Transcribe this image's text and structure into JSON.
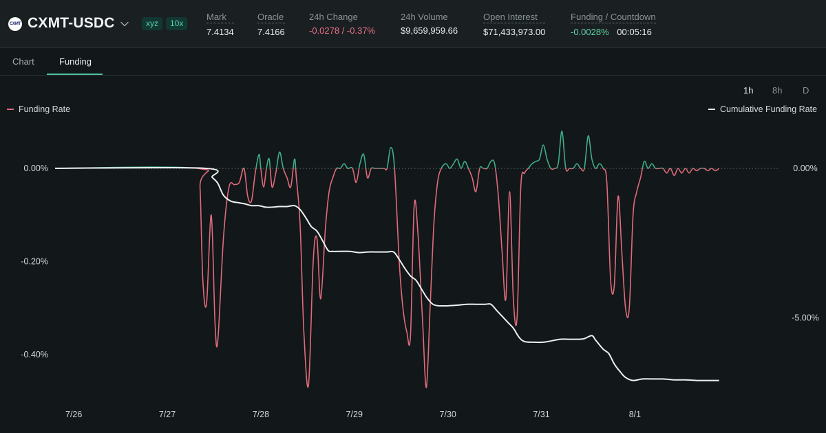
{
  "header": {
    "logo_text": "CXMT",
    "symbol": "CXMT-USDC",
    "badges": [
      "xyz",
      "10x"
    ],
    "stats": {
      "mark": {
        "label": "Mark",
        "value": "7.4134"
      },
      "oracle": {
        "label": "Oracle",
        "value": "7.4166"
      },
      "change": {
        "label": "24h Change",
        "value": "-0.0278 / -0.37%"
      },
      "volume": {
        "label": "24h Volume",
        "value": "$9,659,959.66"
      },
      "open_interest": {
        "label": "Open Interest",
        "value": "$71,433,973.00"
      },
      "funding": {
        "label": "Funding / Countdown",
        "rate": "-0.0028%",
        "countdown": "00:05:16"
      }
    }
  },
  "tabs": [
    {
      "label": "Chart"
    },
    {
      "label": "Funding"
    }
  ],
  "active_tab": "Funding",
  "intervals": [
    {
      "label": "1h"
    },
    {
      "label": "8h"
    },
    {
      "label": "D"
    }
  ],
  "active_interval": "1h",
  "colors": {
    "positive": "#3fae86",
    "negative": "#e06b7c",
    "cumulative": "#eef0f0",
    "accent": "#4fc3a4"
  },
  "chart_data": {
    "type": "line",
    "legend": {
      "left": "Funding Rate",
      "right": "Cumulative Funding Rate"
    },
    "x_ticks": [
      "7/26",
      "7/27",
      "7/28",
      "7/29",
      "7/30",
      "7/31",
      "8/1"
    ],
    "x_range": [
      0,
      7.75
    ],
    "left_axis": {
      "ticks": [
        "0.00%",
        "-0.20%",
        "-0.40%"
      ],
      "tick_values": [
        0,
        -0.2,
        -0.4
      ],
      "range": [
        -0.5,
        0.09
      ]
    },
    "right_axis": {
      "ticks": [
        "0.00%",
        "-5.00%"
      ],
      "tick_values": [
        0,
        -5
      ],
      "range": [
        -7.8,
        1.4
      ]
    },
    "zero_line": "dotted",
    "series": [
      {
        "name": "Funding Rate",
        "axis": "left",
        "colors": {
          "above_zero": "#3fae86",
          "below_zero": "#e06b7c"
        },
        "points": [
          [
            0,
            0
          ],
          [
            1.52,
            0
          ],
          [
            1.55,
            -0.04
          ],
          [
            1.58,
            -0.24
          ],
          [
            1.62,
            -0.29
          ],
          [
            1.67,
            -0.1
          ],
          [
            1.71,
            -0.33
          ],
          [
            1.74,
            -0.37
          ],
          [
            1.8,
            -0.15
          ],
          [
            1.86,
            -0.04
          ],
          [
            1.92,
            -0.035
          ],
          [
            1.97,
            -0.03
          ],
          [
            2.02,
            0.0
          ],
          [
            2.06,
            -0.06
          ],
          [
            2.1,
            -0.07
          ],
          [
            2.14,
            -0.01
          ],
          [
            2.18,
            0.03
          ],
          [
            2.2,
            0.0
          ],
          [
            2.23,
            -0.04
          ],
          [
            2.26,
            0.0
          ],
          [
            2.29,
            0.02
          ],
          [
            2.32,
            -0.04
          ],
          [
            2.36,
            -0.01
          ],
          [
            2.4,
            0.035
          ],
          [
            2.44,
            0.0
          ],
          [
            2.48,
            -0.02
          ],
          [
            2.52,
            -0.04
          ],
          [
            2.56,
            0.02
          ],
          [
            2.58,
            -0.02
          ],
          [
            2.62,
            -0.12
          ],
          [
            2.66,
            -0.35
          ],
          [
            2.71,
            -0.465
          ],
          [
            2.76,
            -0.2
          ],
          [
            2.8,
            -0.15
          ],
          [
            2.84,
            -0.28
          ],
          [
            2.89,
            -0.13
          ],
          [
            2.93,
            -0.05
          ],
          [
            2.97,
            -0.02
          ],
          [
            3.01,
            0.0
          ],
          [
            3.05,
            0.0
          ],
          [
            3.09,
            0.01
          ],
          [
            3.13,
            0.0
          ],
          [
            3.18,
            0.0
          ],
          [
            3.22,
            -0.03
          ],
          [
            3.26,
            0.01
          ],
          [
            3.3,
            0.03
          ],
          [
            3.34,
            -0.02
          ],
          [
            3.38,
            0.0
          ],
          [
            3.42,
            0.0
          ],
          [
            3.48,
            0.0
          ],
          [
            3.52,
            0.0
          ],
          [
            3.55,
            0.0
          ],
          [
            3.59,
            0.045
          ],
          [
            3.63,
            0.0
          ],
          [
            3.68,
            -0.2
          ],
          [
            3.72,
            -0.3
          ],
          [
            3.76,
            -0.35
          ],
          [
            3.8,
            -0.36
          ],
          [
            3.84,
            -0.08
          ],
          [
            3.88,
            -0.14
          ],
          [
            3.93,
            -0.33
          ],
          [
            3.97,
            -0.47
          ],
          [
            4.01,
            -0.3
          ],
          [
            4.05,
            -0.12
          ],
          [
            4.09,
            -0.03
          ],
          [
            4.13,
            0.0
          ],
          [
            4.18,
            0.01
          ],
          [
            4.22,
            0.0
          ],
          [
            4.26,
            0.01
          ],
          [
            4.3,
            0.02
          ],
          [
            4.34,
            0.0
          ],
          [
            4.38,
            0.015
          ],
          [
            4.42,
            0.0
          ],
          [
            4.46,
            -0.02
          ],
          [
            4.5,
            -0.05
          ],
          [
            4.54,
            0.0
          ],
          [
            4.58,
            0.0
          ],
          [
            4.62,
            0.0
          ],
          [
            4.66,
            0.015
          ],
          [
            4.7,
            0.01
          ],
          [
            4.74,
            -0.06
          ],
          [
            4.78,
            -0.18
          ],
          [
            4.82,
            -0.28
          ],
          [
            4.86,
            -0.05
          ],
          [
            4.9,
            -0.28
          ],
          [
            4.94,
            -0.32
          ],
          [
            4.98,
            -0.04
          ],
          [
            5.02,
            -0.01
          ],
          [
            5.06,
            0.0
          ],
          [
            5.1,
            0.01
          ],
          [
            5.14,
            0.015
          ],
          [
            5.18,
            0.02
          ],
          [
            5.22,
            0.05
          ],
          [
            5.26,
            0.02
          ],
          [
            5.3,
            0.0
          ],
          [
            5.34,
            0.0
          ],
          [
            5.38,
            0.01
          ],
          [
            5.42,
            0.08
          ],
          [
            5.46,
            0.0
          ],
          [
            5.5,
            0.0
          ],
          [
            5.54,
            0.0
          ],
          [
            5.58,
            0.01
          ],
          [
            5.62,
            0.0
          ],
          [
            5.66,
            0.0
          ],
          [
            5.7,
            0.07
          ],
          [
            5.74,
            0.02
          ],
          [
            5.78,
            0.0
          ],
          [
            5.82,
            0.01
          ],
          [
            5.86,
            0.0
          ],
          [
            5.9,
            -0.03
          ],
          [
            5.94,
            -0.24
          ],
          [
            5.98,
            -0.25
          ],
          [
            6.02,
            -0.06
          ],
          [
            6.06,
            -0.18
          ],
          [
            6.1,
            -0.3
          ],
          [
            6.14,
            -0.3
          ],
          [
            6.18,
            -0.1
          ],
          [
            6.22,
            -0.05
          ],
          [
            6.26,
            -0.02
          ],
          [
            6.3,
            0.015
          ],
          [
            6.34,
            0.0
          ],
          [
            6.38,
            0.01
          ],
          [
            6.42,
            0.0
          ],
          [
            6.46,
            0.0
          ],
          [
            6.5,
            0.0
          ],
          [
            6.54,
            -0.01
          ],
          [
            6.58,
            0.0
          ],
          [
            6.62,
            -0.015
          ],
          [
            6.66,
            0.0
          ],
          [
            6.7,
            -0.01
          ],
          [
            6.74,
            0.0
          ],
          [
            6.78,
            -0.01
          ],
          [
            6.82,
            0.0
          ],
          [
            6.86,
            -0.005
          ],
          [
            6.9,
            0.0
          ],
          [
            6.94,
            0.0
          ],
          [
            6.98,
            -0.005
          ],
          [
            7.02,
            0.0
          ],
          [
            7.06,
            -0.005
          ],
          [
            7.1,
            0.0
          ]
        ]
      },
      {
        "name": "Cumulative Funding Rate",
        "axis": "right",
        "color": "#eef0f0",
        "points": [
          [
            0,
            0
          ],
          [
            1.6,
            0
          ],
          [
            1.68,
            -0.3
          ],
          [
            1.74,
            -0.5
          ],
          [
            1.8,
            -0.9
          ],
          [
            1.88,
            -1.1
          ],
          [
            1.96,
            -1.15
          ],
          [
            2.04,
            -1.2
          ],
          [
            2.1,
            -1.25
          ],
          [
            2.18,
            -1.25
          ],
          [
            2.25,
            -1.3
          ],
          [
            2.32,
            -1.3
          ],
          [
            2.4,
            -1.28
          ],
          [
            2.48,
            -1.28
          ],
          [
            2.56,
            -1.25
          ],
          [
            2.62,
            -1.38
          ],
          [
            2.68,
            -1.65
          ],
          [
            2.74,
            -1.95
          ],
          [
            2.8,
            -2.1
          ],
          [
            2.86,
            -2.42
          ],
          [
            2.92,
            -2.75
          ],
          [
            2.97,
            -2.78
          ],
          [
            3.05,
            -2.78
          ],
          [
            3.15,
            -2.78
          ],
          [
            3.25,
            -2.82
          ],
          [
            3.35,
            -2.8
          ],
          [
            3.45,
            -2.8
          ],
          [
            3.55,
            -2.8
          ],
          [
            3.62,
            -2.8
          ],
          [
            3.68,
            -3.05
          ],
          [
            3.74,
            -3.35
          ],
          [
            3.8,
            -3.6
          ],
          [
            3.86,
            -3.75
          ],
          [
            3.92,
            -4.05
          ],
          [
            3.98,
            -4.35
          ],
          [
            4.04,
            -4.55
          ],
          [
            4.1,
            -4.6
          ],
          [
            4.2,
            -4.6
          ],
          [
            4.3,
            -4.58
          ],
          [
            4.4,
            -4.55
          ],
          [
            4.5,
            -4.55
          ],
          [
            4.6,
            -4.55
          ],
          [
            4.66,
            -4.55
          ],
          [
            4.72,
            -4.75
          ],
          [
            4.78,
            -4.95
          ],
          [
            4.84,
            -5.15
          ],
          [
            4.9,
            -5.35
          ],
          [
            4.96,
            -5.65
          ],
          [
            5.02,
            -5.8
          ],
          [
            5.12,
            -5.82
          ],
          [
            5.22,
            -5.82
          ],
          [
            5.3,
            -5.78
          ],
          [
            5.4,
            -5.72
          ],
          [
            5.5,
            -5.72
          ],
          [
            5.6,
            -5.72
          ],
          [
            5.66,
            -5.7
          ],
          [
            5.74,
            -5.6
          ],
          [
            5.78,
            -5.75
          ],
          [
            5.86,
            -6.05
          ],
          [
            5.92,
            -6.2
          ],
          [
            5.98,
            -6.55
          ],
          [
            6.04,
            -6.8
          ],
          [
            6.1,
            -7.0
          ],
          [
            6.18,
            -7.1
          ],
          [
            6.28,
            -7.05
          ],
          [
            6.38,
            -7.05
          ],
          [
            6.5,
            -7.05
          ],
          [
            6.62,
            -7.08
          ],
          [
            6.74,
            -7.08
          ],
          [
            6.86,
            -7.1
          ],
          [
            6.98,
            -7.1
          ],
          [
            7.1,
            -7.1
          ]
        ]
      }
    ]
  }
}
